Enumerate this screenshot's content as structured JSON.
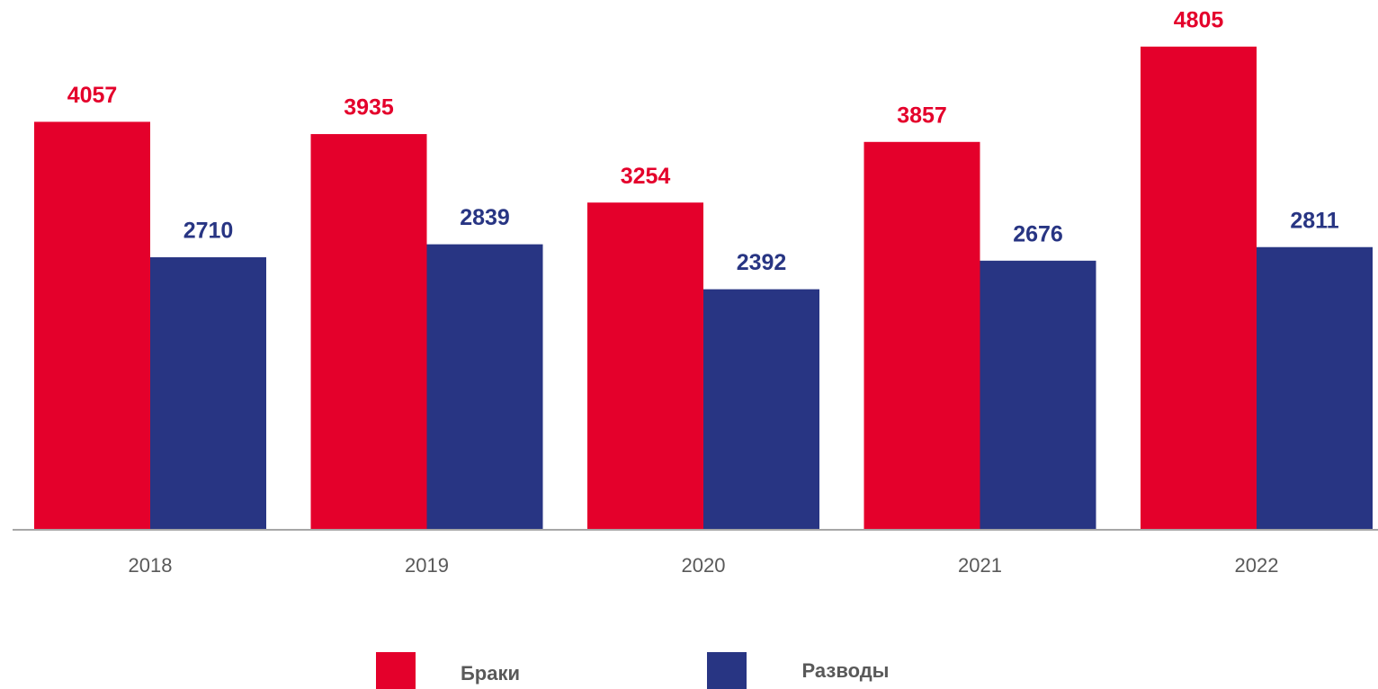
{
  "chart_data": {
    "type": "bar",
    "categories": [
      "2018",
      "2019",
      "2020",
      "2021",
      "2022"
    ],
    "series": [
      {
        "name": "Браки",
        "color": "#e4002b",
        "values": [
          4057,
          3935,
          3254,
          3857,
          4805
        ]
      },
      {
        "name": "Разводы",
        "color": "#283583",
        "values": [
          2710,
          2839,
          2392,
          2676,
          2811
        ]
      }
    ],
    "ylim": [
      0,
      5000
    ],
    "legend": "bottom"
  }
}
